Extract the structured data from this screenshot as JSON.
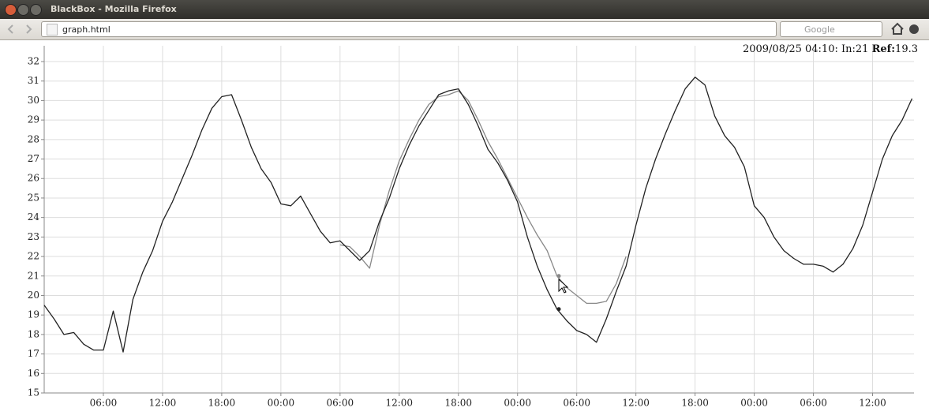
{
  "window": {
    "title": "BlackBox - Mozilla Firefox"
  },
  "toolbar": {
    "url": "graph.html",
    "search_placeholder": "Google"
  },
  "readout": {
    "time": "2009/08/25 04:10:",
    "in_label": "In:",
    "in_value": 21,
    "ref_label": "Ref:",
    "ref_value": 19.3
  },
  "chart_data": {
    "type": "line",
    "x": [
      0,
      1,
      2,
      3,
      4,
      5,
      6,
      7,
      8,
      9,
      10,
      11,
      12,
      13,
      14,
      15,
      16,
      17,
      18,
      19,
      20,
      21,
      22,
      23,
      24,
      25,
      26,
      27,
      28,
      29,
      30,
      31,
      32,
      33,
      34,
      35,
      36,
      37,
      38,
      39,
      40,
      41,
      42,
      43,
      44,
      45,
      46,
      47,
      48,
      49,
      50,
      51,
      52,
      53,
      54,
      55,
      56,
      57,
      58,
      59,
      60,
      61,
      62,
      63,
      64,
      65,
      66,
      67,
      68,
      69,
      70,
      71,
      72,
      73,
      74,
      75,
      76,
      77,
      78,
      79,
      80,
      81,
      82,
      83,
      84,
      85,
      86,
      87,
      88
    ],
    "series": [
      {
        "color": "#222222",
        "values": [
          19.5,
          18.8,
          18.0,
          18.1,
          17.5,
          17.2,
          17.2,
          19.2,
          17.1,
          19.8,
          21.2,
          22.3,
          23.8,
          24.8,
          26.0,
          27.2,
          28.5,
          29.6,
          30.2,
          30.3,
          29.0,
          27.6,
          26.5,
          25.8,
          24.7,
          24.6,
          25.1,
          24.2,
          23.3,
          22.7,
          22.8,
          22.3,
          21.8,
          22.3,
          23.8,
          25.0,
          26.5,
          27.7,
          28.7,
          29.5,
          30.3,
          30.5,
          30.6,
          29.8,
          28.7,
          27.5,
          26.8,
          25.9,
          24.8,
          23.0,
          21.5,
          20.3,
          19.3,
          18.7,
          18.2,
          18.0,
          17.6,
          18.8,
          20.2,
          21.5,
          23.6,
          25.5,
          27.0,
          28.3,
          29.5,
          30.6,
          31.2,
          30.8,
          29.2,
          28.2,
          27.6,
          26.6,
          24.6,
          24.0,
          23.0,
          22.3,
          21.9,
          21.6,
          21.6,
          21.5,
          21.2,
          21.6,
          22.4,
          23.6,
          25.3,
          27.0,
          28.2,
          29.0,
          30.1
        ]
      },
      {
        "color": "#888888",
        "values": [
          null,
          null,
          null,
          null,
          null,
          null,
          null,
          null,
          null,
          null,
          null,
          null,
          null,
          null,
          null,
          null,
          null,
          null,
          null,
          null,
          null,
          null,
          null,
          null,
          null,
          null,
          null,
          null,
          null,
          null,
          22.6,
          22.5,
          22.0,
          21.4,
          23.6,
          25.4,
          26.9,
          28.0,
          29.0,
          29.8,
          30.2,
          30.3,
          30.5,
          30.0,
          29.0,
          27.9,
          27.0,
          26.0,
          25.0,
          24.0,
          23.1,
          22.3,
          21.0,
          20.4,
          20.0,
          19.6,
          19.6,
          19.7,
          20.6,
          22.0,
          null,
          null,
          null,
          null,
          null,
          null,
          null,
          null,
          null,
          null,
          null,
          null,
          null,
          null,
          null,
          null,
          null,
          null,
          null,
          null,
          null,
          null,
          null,
          null,
          null,
          null,
          null,
          null,
          null
        ]
      }
    ],
    "xlim": [
      0,
      88.2
    ],
    "xticks": [
      {
        "value": 6,
        "label": "06:00"
      },
      {
        "value": 12,
        "label": "12:00"
      },
      {
        "value": 18,
        "label": "18:00"
      },
      {
        "value": 24,
        "label": "00:00"
      },
      {
        "value": 30,
        "label": "06:00"
      },
      {
        "value": 36,
        "label": "12:00"
      },
      {
        "value": 42,
        "label": "18:00"
      },
      {
        "value": 48,
        "label": "00:00"
      },
      {
        "value": 54,
        "label": "06:00"
      },
      {
        "value": 60,
        "label": "12:00"
      },
      {
        "value": 66,
        "label": "18:00"
      },
      {
        "value": 72,
        "label": "00:00"
      },
      {
        "value": 78,
        "label": "06:00"
      },
      {
        "value": 84,
        "label": "12:00"
      }
    ],
    "ylim": [
      15,
      32
    ],
    "yticks": [
      15,
      16,
      17,
      18,
      19,
      20,
      21,
      22,
      23,
      24,
      25,
      26,
      27,
      28,
      29,
      30,
      31,
      32
    ],
    "grid": true
  }
}
